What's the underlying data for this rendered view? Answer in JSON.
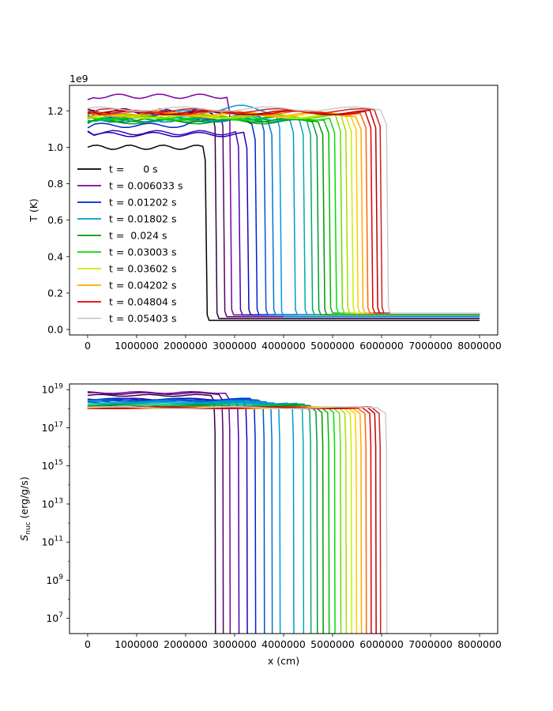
{
  "chart_data": [
    {
      "type": "line",
      "ylabel": "T (K)",
      "offset_text": "1e9",
      "xlim": [
        -370000,
        8370000
      ],
      "ylim": [
        -0.03,
        1.34
      ],
      "xticks": [
        0,
        1000000,
        2000000,
        3000000,
        4000000,
        5000000,
        6000000,
        7000000,
        8000000
      ],
      "xtick_labels": [
        "0",
        "1000000",
        "2000000",
        "3000000",
        "4000000",
        "5000000",
        "6000000",
        "7000000",
        "8000000"
      ],
      "yticks": [
        0.0,
        0.2,
        0.4,
        0.6,
        0.8,
        1.0,
        1.2
      ],
      "ytick_labels": [
        "0.0",
        "0.2",
        "0.4",
        "0.6",
        "0.8",
        "1.0",
        "1.2"
      ],
      "legend": {
        "placement": "left",
        "entries": [
          {
            "label": "t =      0 s",
            "color": "#000000"
          },
          {
            "label": "t = 0.006033 s",
            "color": "#7a00a0"
          },
          {
            "label": "t = 0.01202 s",
            "color": "#0022cc"
          },
          {
            "label": "t = 0.01802 s",
            "color": "#0099cc"
          },
          {
            "label": "t =  0.024 s",
            "color": "#009900"
          },
          {
            "label": "t = 0.03003 s",
            "color": "#00dd00"
          },
          {
            "label": "t = 0.03602 s",
            "color": "#ccee00"
          },
          {
            "label": "t = 0.04202 s",
            "color": "#ffaa00"
          },
          {
            "label": "t = 0.04804 s",
            "color": "#dd0000"
          },
          {
            "label": "t = 0.05403 s",
            "color": "#cccccc"
          }
        ]
      },
      "series": [
        {
          "color": "#000000",
          "front": 2400000,
          "hot": 1.0,
          "cold": 0.05,
          "bump": 0
        },
        {
          "color": "#330044",
          "front": 2600000,
          "hot": 1.19,
          "cold": 0.06,
          "bump": 0
        },
        {
          "color": "#55006b",
          "front": 2760000,
          "hot": 1.2,
          "cold": 0.07,
          "bump": 0
        },
        {
          "color": "#7a00a0",
          "front": 2900000,
          "hot": 1.28,
          "cold": 0.08,
          "bump": 0
        },
        {
          "color": "#4a00b0",
          "front": 3080000,
          "hot": 1.08,
          "cold": 0.08,
          "bump": 0
        },
        {
          "color": "#1a00c0",
          "front": 3250000,
          "hot": 1.07,
          "cold": 0.08,
          "bump": 0
        },
        {
          "color": "#0022cc",
          "front": 3420000,
          "hot": 1.12,
          "cold": 0.08,
          "bump": 0.04
        },
        {
          "color": "#0055cc",
          "front": 3600000,
          "hot": 1.17,
          "cold": 0.08,
          "bump": 0
        },
        {
          "color": "#0077cc",
          "front": 3760000,
          "hot": 1.15,
          "cold": 0.08,
          "bump": 0
        },
        {
          "color": "#0099dd",
          "front": 3920000,
          "hot": 1.19,
          "cold": 0.07,
          "bump": 0.03
        },
        {
          "color": "#0099cc",
          "front": 4200000,
          "hot": 1.16,
          "cold": 0.08,
          "bump": 0
        },
        {
          "color": "#00aaaa",
          "front": 4400000,
          "hot": 1.15,
          "cold": 0.08,
          "bump": 0
        },
        {
          "color": "#00aa66",
          "front": 4550000,
          "hot": 1.15,
          "cold": 0.08,
          "bump": 0
        },
        {
          "color": "#009933",
          "front": 4680000,
          "hot": 1.14,
          "cold": 0.08,
          "bump": 0
        },
        {
          "color": "#009900",
          "front": 4800000,
          "hot": 1.15,
          "cold": 0.08,
          "bump": 0
        },
        {
          "color": "#00bb00",
          "front": 4920000,
          "hot": 1.16,
          "cold": 0.09,
          "bump": 0
        },
        {
          "color": "#00dd00",
          "front": 5040000,
          "hot": 1.16,
          "cold": 0.09,
          "bump": 0
        },
        {
          "color": "#66dd00",
          "front": 5160000,
          "hot": 1.17,
          "cold": 0.09,
          "bump": 0
        },
        {
          "color": "#aadd00",
          "front": 5270000,
          "hot": 1.17,
          "cold": 0.09,
          "bump": 0
        },
        {
          "color": "#ccee00",
          "front": 5380000,
          "hot": 1.17,
          "cold": 0.09,
          "bump": 0
        },
        {
          "color": "#ffcc00",
          "front": 5480000,
          "hot": 1.18,
          "cold": 0.09,
          "bump": 0
        },
        {
          "color": "#ffaa00",
          "front": 5580000,
          "hot": 1.18,
          "cold": 0.09,
          "bump": 0
        },
        {
          "color": "#ff6600",
          "front": 5680000,
          "hot": 1.19,
          "cold": 0.09,
          "bump": 0
        },
        {
          "color": "#dd0000",
          "front": 5780000,
          "hot": 1.19,
          "cold": 0.09,
          "bump": 0
        },
        {
          "color": "#bb0000",
          "front": 5880000,
          "hot": 1.19,
          "cold": 0.09,
          "bump": 0
        },
        {
          "color": "#cc2222",
          "front": 5970000,
          "hot": 1.2,
          "cold": 0.09,
          "bump": 0
        },
        {
          "color": "#cccccc",
          "front": 6100000,
          "hot": 1.21,
          "cold": 0.09,
          "bump": 0
        }
      ]
    },
    {
      "type": "line",
      "xlabel": "x (cm)",
      "ylabel_main": "S",
      "ylabel_sub": "nuc",
      "ylabel_units": " (erg/g/s)",
      "yscale": "log",
      "xlim": [
        -370000,
        8370000
      ],
      "ylim_log10": [
        6.2,
        19.3
      ],
      "xticks": [
        0,
        1000000,
        2000000,
        3000000,
        4000000,
        5000000,
        6000000,
        7000000,
        8000000
      ],
      "xtick_labels": [
        "0",
        "1000000",
        "2000000",
        "3000000",
        "4000000",
        "5000000",
        "6000000",
        "7000000",
        "8000000"
      ],
      "yticks_log10": [
        7,
        9,
        11,
        13,
        15,
        17,
        19
      ],
      "ytick_base": "10",
      "ytick_exponents": [
        "7",
        "9",
        "11",
        "13",
        "15",
        "17",
        "19"
      ],
      "series": [
        {
          "color": "#330044",
          "front": 2600000,
          "hot_log": 18.7
        },
        {
          "color": "#55006b",
          "front": 2760000,
          "hot_log": 18.8
        },
        {
          "color": "#7a00a0",
          "front": 2900000,
          "hot_log": 18.85
        },
        {
          "color": "#4a00b0",
          "front": 3080000,
          "hot_log": 18.5
        },
        {
          "color": "#1a00c0",
          "front": 3250000,
          "hot_log": 18.4
        },
        {
          "color": "#0022cc",
          "front": 3420000,
          "hot_log": 18.5
        },
        {
          "color": "#0055cc",
          "front": 3600000,
          "hot_log": 18.45
        },
        {
          "color": "#0077cc",
          "front": 3760000,
          "hot_log": 18.4
        },
        {
          "color": "#0099dd",
          "front": 3920000,
          "hot_log": 18.35
        },
        {
          "color": "#0099cc",
          "front": 4200000,
          "hot_log": 18.3
        },
        {
          "color": "#00aaaa",
          "front": 4400000,
          "hot_log": 18.25
        },
        {
          "color": "#00aa66",
          "front": 4550000,
          "hot_log": 18.2
        },
        {
          "color": "#009933",
          "front": 4680000,
          "hot_log": 18.15
        },
        {
          "color": "#009900",
          "front": 4800000,
          "hot_log": 18.1
        },
        {
          "color": "#00bb00",
          "front": 4920000,
          "hot_log": 18.1
        },
        {
          "color": "#00dd00",
          "front": 5040000,
          "hot_log": 18.1
        },
        {
          "color": "#66dd00",
          "front": 5160000,
          "hot_log": 18.05
        },
        {
          "color": "#aadd00",
          "front": 5270000,
          "hot_log": 18.05
        },
        {
          "color": "#ccee00",
          "front": 5380000,
          "hot_log": 18.05
        },
        {
          "color": "#ffcc00",
          "front": 5480000,
          "hot_log": 18.05
        },
        {
          "color": "#ffaa00",
          "front": 5580000,
          "hot_log": 18.05
        },
        {
          "color": "#ff6600",
          "front": 5680000,
          "hot_log": 18.05
        },
        {
          "color": "#dd0000",
          "front": 5780000,
          "hot_log": 18.05
        },
        {
          "color": "#bb0000",
          "front": 5880000,
          "hot_log": 18.05
        },
        {
          "color": "#cc2222",
          "front": 5970000,
          "hot_log": 18.05
        },
        {
          "color": "#cccccc",
          "front": 6100000,
          "hot_log": 18.05
        }
      ]
    }
  ]
}
